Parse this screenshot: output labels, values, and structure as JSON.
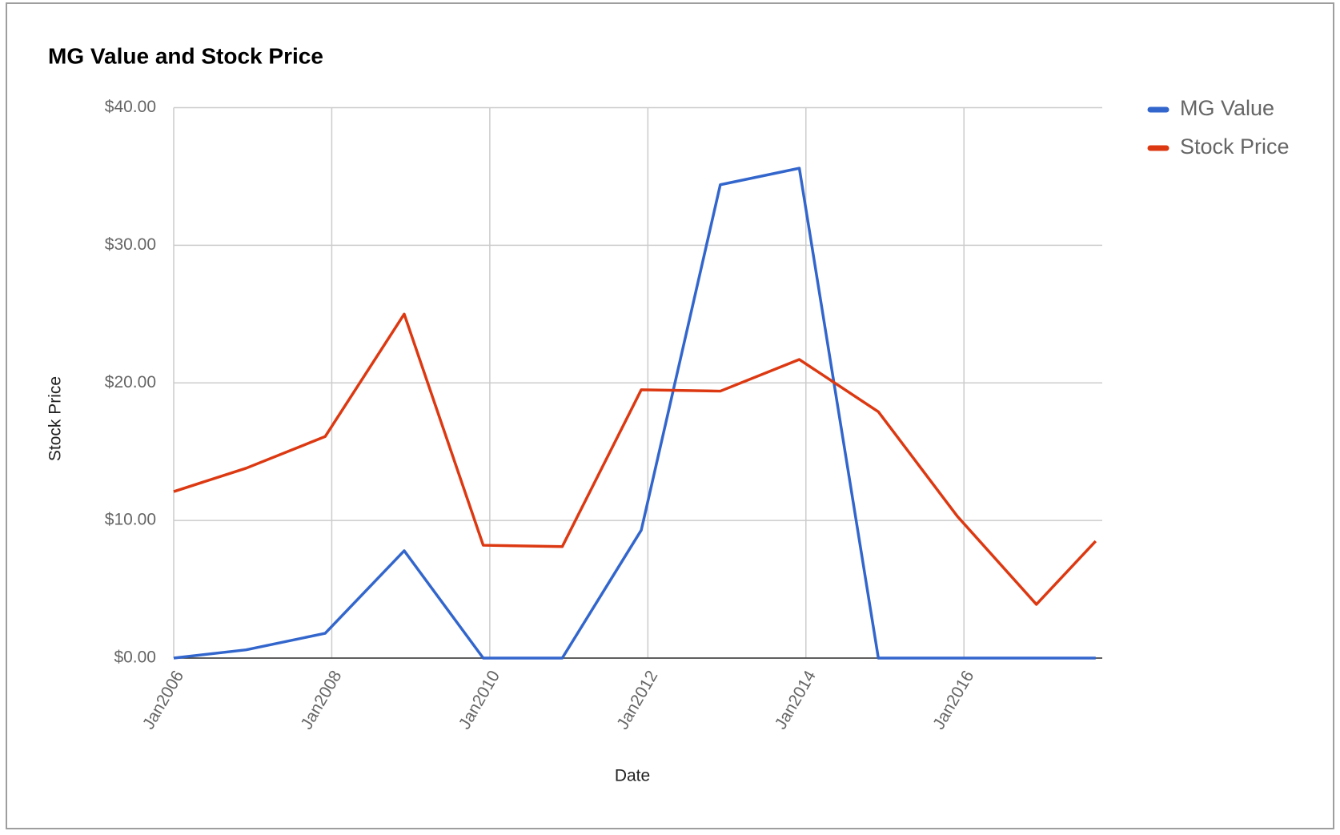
{
  "chart_data": {
    "type": "line",
    "title": "MG Value and Stock Price",
    "x_label": "Date",
    "y_label": "Stock Price",
    "x": [
      "2006-01",
      "2006-12",
      "2007-12",
      "2008-12",
      "2009-12",
      "2010-12",
      "2011-12",
      "2012-12",
      "2013-12",
      "2014-12",
      "2015-12",
      "2016-12",
      "2017-09"
    ],
    "series": [
      {
        "name": "MG Value",
        "color": "#3366cc",
        "values": [
          0,
          0.6,
          1.8,
          7.8,
          0,
          0,
          9.3,
          34.4,
          35.6,
          0,
          0,
          0,
          0
        ]
      },
      {
        "name": "Stock Price",
        "color": "#dc3912",
        "values": [
          12.1,
          13.8,
          16.1,
          25.0,
          8.2,
          8.1,
          19.5,
          19.4,
          21.7,
          17.9,
          10.3,
          3.9,
          8.5
        ]
      }
    ],
    "xlim": [
      "2006-01",
      "2017-10"
    ],
    "xticks": [
      {
        "value": "2006-01",
        "label": "Jan2006"
      },
      {
        "value": "2008-01",
        "label": "Jan2008"
      },
      {
        "value": "2010-01",
        "label": "Jan2010"
      },
      {
        "value": "2012-01",
        "label": "Jan2012"
      },
      {
        "value": "2014-01",
        "label": "Jan2014"
      },
      {
        "value": "2016-01",
        "label": "Jan2016"
      }
    ],
    "ylim": [
      0,
      40
    ],
    "yticks": [
      {
        "value": 0,
        "label": "$0.00"
      },
      {
        "value": 10,
        "label": "$10.00"
      },
      {
        "value": 20,
        "label": "$20.00"
      },
      {
        "value": 30,
        "label": "$30.00"
      },
      {
        "value": 40,
        "label": "$40.00"
      }
    ],
    "grid": true,
    "legend": "right"
  }
}
